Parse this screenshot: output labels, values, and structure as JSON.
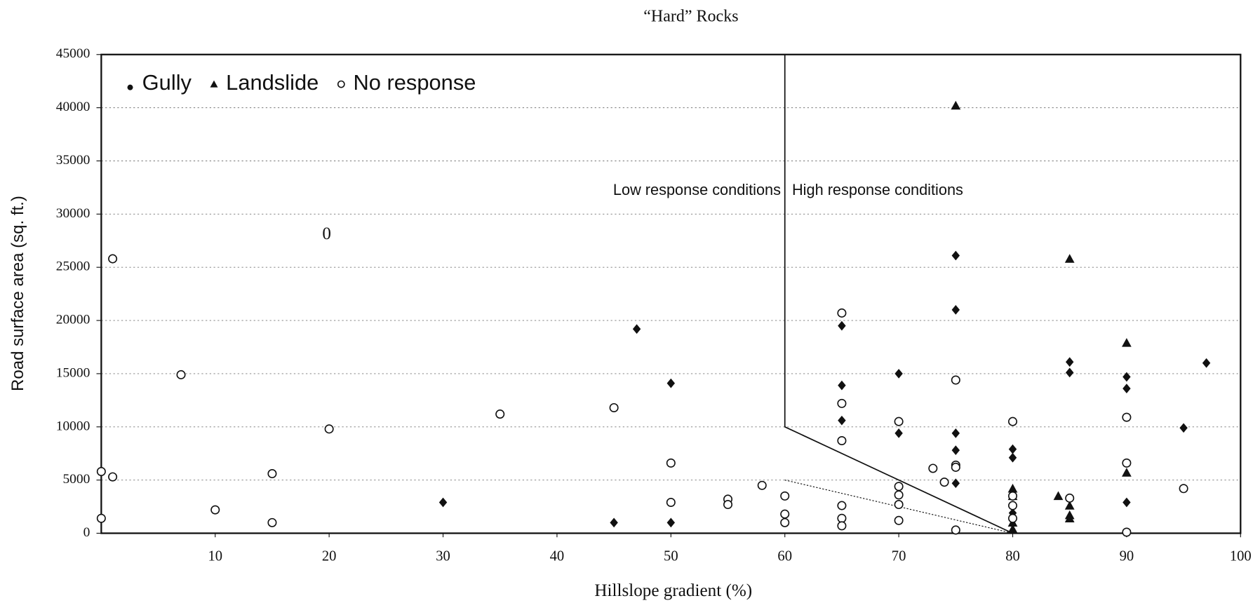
{
  "chart_data": {
    "type": "scatter",
    "title": "“Hard” Rocks",
    "x_label": "Hillslope gradient (%)",
    "y_label": "Road surface area (sq. ft.)",
    "xlim": [
      0,
      100
    ],
    "ylim": [
      0,
      45000
    ],
    "xticks": [
      10,
      20,
      30,
      40,
      50,
      60,
      70,
      80,
      90,
      100
    ],
    "yticks": [
      0,
      5000,
      10000,
      15000,
      20000,
      25000,
      30000,
      35000,
      40000,
      45000
    ],
    "grid": true,
    "legend": "top-left",
    "annotations": [
      "Low response conditions",
      "High response conditions",
      "0"
    ],
    "threshold": {
      "x": [
        60,
        60,
        80
      ],
      "y": [
        45000,
        10000,
        0
      ]
    },
    "lower_threshold": {
      "x": [
        60,
        80
      ],
      "y": [
        5000,
        0
      ]
    },
    "series": [
      {
        "name": "Gully",
        "marker": "diamond",
        "color": "#111111",
        "x": [
          47,
          50,
          30,
          45,
          50,
          65,
          65,
          65,
          70,
          70,
          75,
          75,
          75,
          75,
          75,
          80,
          80,
          80,
          85,
          85,
          90,
          90,
          90,
          95,
          97
        ],
        "y": [
          19200,
          14100,
          2900,
          1000,
          1000,
          19500,
          13900,
          10600,
          15000,
          9400,
          26100,
          21000,
          9400,
          7800,
          4700,
          7900,
          7100,
          1900,
          16100,
          15100,
          14700,
          13600,
          2900,
          9900,
          16000
        ]
      },
      {
        "name": "Landslide",
        "marker": "triangle",
        "color": "#111111",
        "x": [
          75,
          85,
          90,
          90,
          80,
          80,
          80,
          80,
          84,
          85,
          85,
          85
        ],
        "y": [
          40200,
          25800,
          17900,
          5700,
          4200,
          3500,
          1000,
          400,
          3500,
          2600,
          1700,
          1400
        ]
      },
      {
        "name": "No response",
        "marker": "circle",
        "color": "#111111",
        "x": [
          1,
          0,
          1,
          0,
          7,
          10,
          15,
          15,
          20,
          35,
          45,
          50,
          50,
          55,
          55,
          58,
          60,
          60,
          60,
          65,
          65,
          65,
          65,
          65,
          65,
          70,
          70,
          70,
          70,
          70,
          73,
          74,
          75,
          75,
          75,
          75,
          80,
          80,
          80,
          80,
          85,
          90,
          90,
          90,
          95
        ],
        "y": [
          25800,
          5800,
          5300,
          1400,
          14900,
          2200,
          5600,
          1000,
          9800,
          11200,
          11800,
          6600,
          2900,
          3200,
          2700,
          4500,
          3500,
          1800,
          1000,
          20700,
          12200,
          8700,
          2600,
          1400,
          700,
          10500,
          4400,
          3600,
          2700,
          1200,
          6100,
          4800,
          14400,
          6400,
          6200,
          300,
          10500,
          3500,
          2600,
          1400,
          3300,
          10900,
          6600,
          100,
          4200
        ]
      }
    ]
  }
}
